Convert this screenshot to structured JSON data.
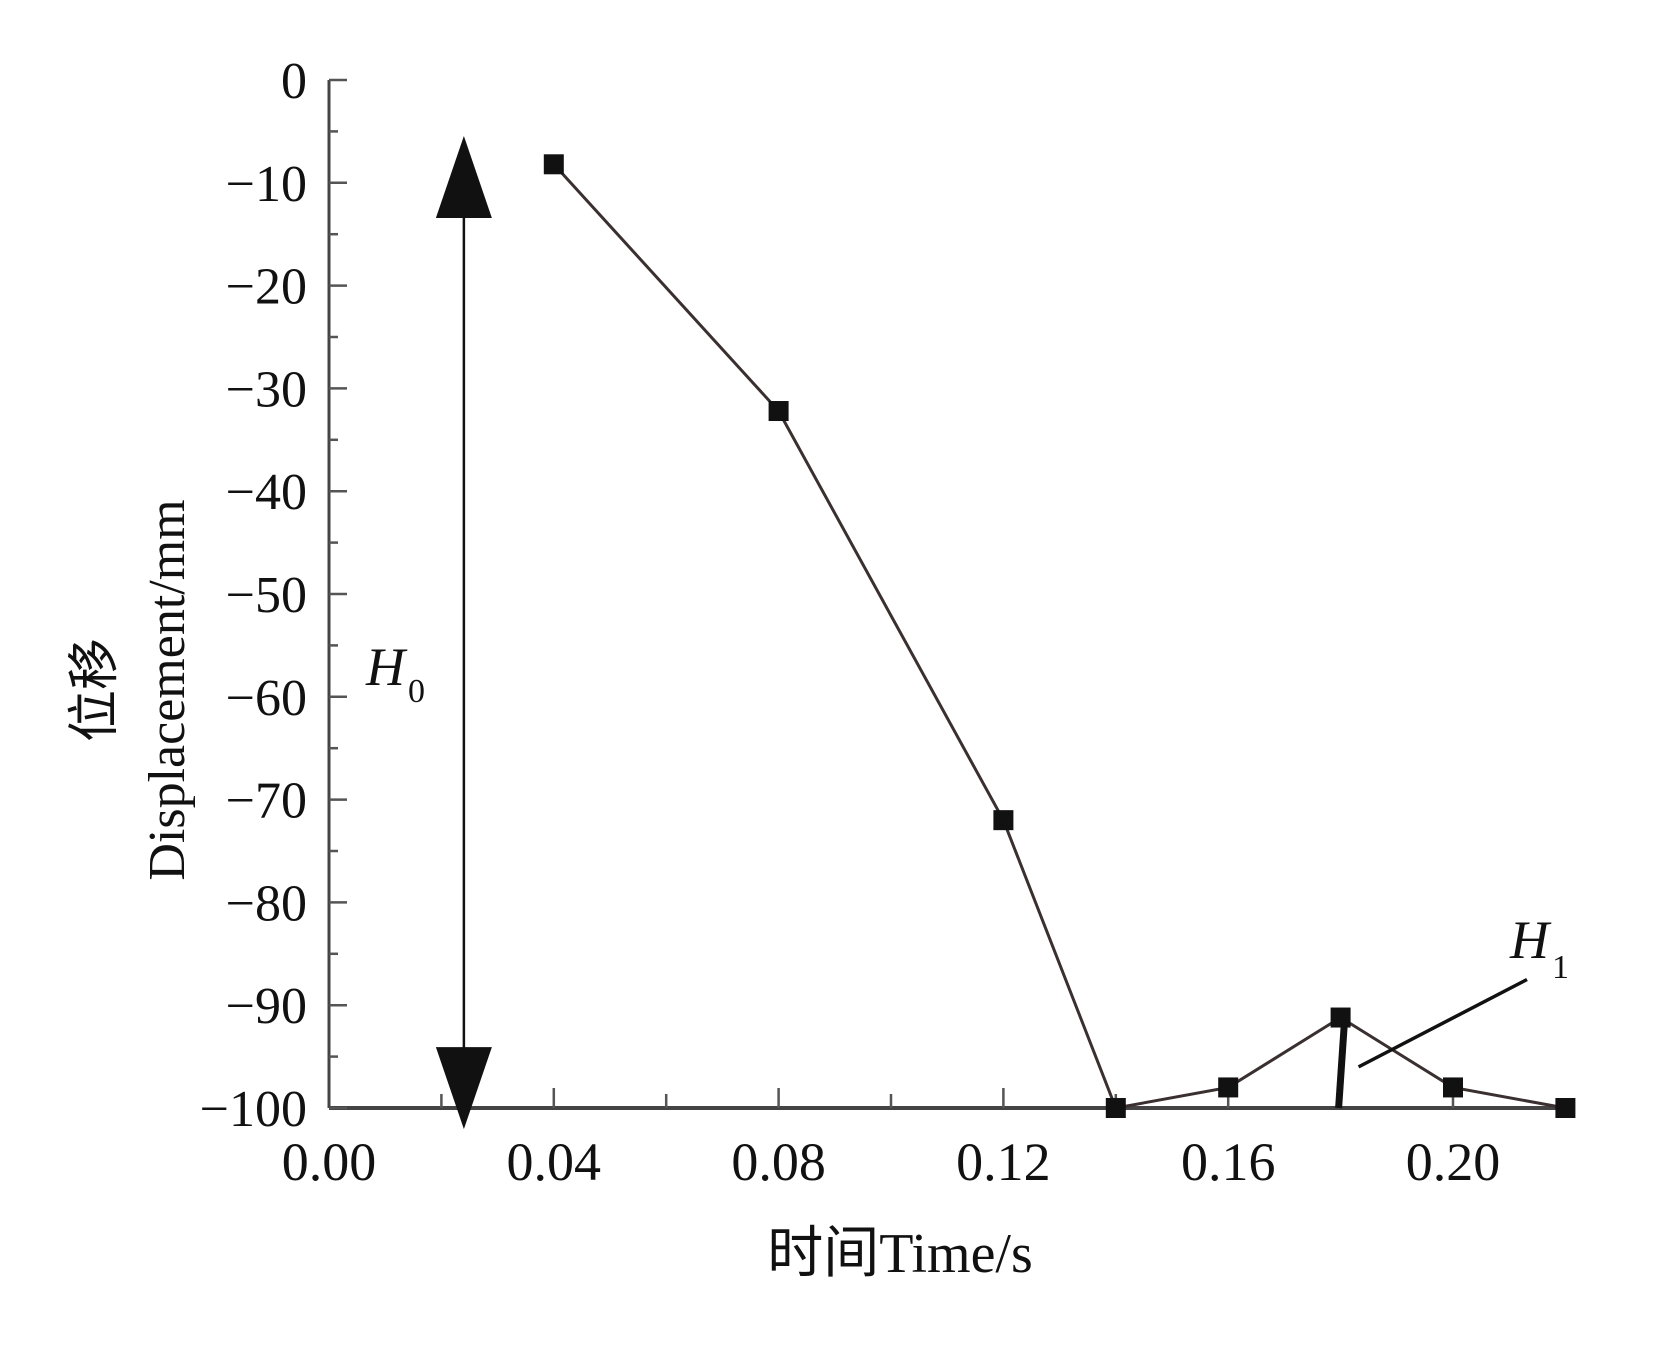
{
  "chart_data": {
    "type": "line",
    "title": "",
    "xlabel": "时间Time/s",
    "ylabel_cn": "位移",
    "ylabel": "Displacement/mm",
    "xlim": [
      0.0,
      0.22
    ],
    "ylim": [
      -100,
      0
    ],
    "x_ticks": [
      0.0,
      0.04,
      0.08,
      0.12,
      0.16,
      0.2
    ],
    "x_tick_labels": [
      "0.00",
      "0.04",
      "0.08",
      "0.12",
      "0.16",
      "0.20"
    ],
    "y_ticks": [
      0,
      -10,
      -20,
      -30,
      -40,
      -50,
      -60,
      -70,
      -80,
      -90,
      -100
    ],
    "y_tick_labels": [
      "0",
      "−10",
      "−20",
      "−30",
      "−40",
      "−50",
      "−60",
      "−70",
      "−80",
      "−90",
      "−100"
    ],
    "grid": false,
    "series": [
      {
        "name": "Displacement",
        "marker": "square",
        "color": "#3a3030",
        "x": [
          0.04,
          0.08,
          0.12,
          0.14,
          0.16,
          0.18,
          0.2,
          0.22
        ],
        "y": [
          -8.2,
          -32.2,
          -72,
          -100,
          -98,
          -91.2,
          -98,
          -100
        ]
      }
    ],
    "annotations": [
      {
        "label": "H",
        "subscript": "0",
        "type": "double-arrow",
        "x": 0.024,
        "y_from": -10.5,
        "y_to": -97
      },
      {
        "label": "H",
        "subscript": "1",
        "type": "bar-with-leader",
        "x": 0.18,
        "y_from": -91.2,
        "y_to": -100
      }
    ]
  }
}
